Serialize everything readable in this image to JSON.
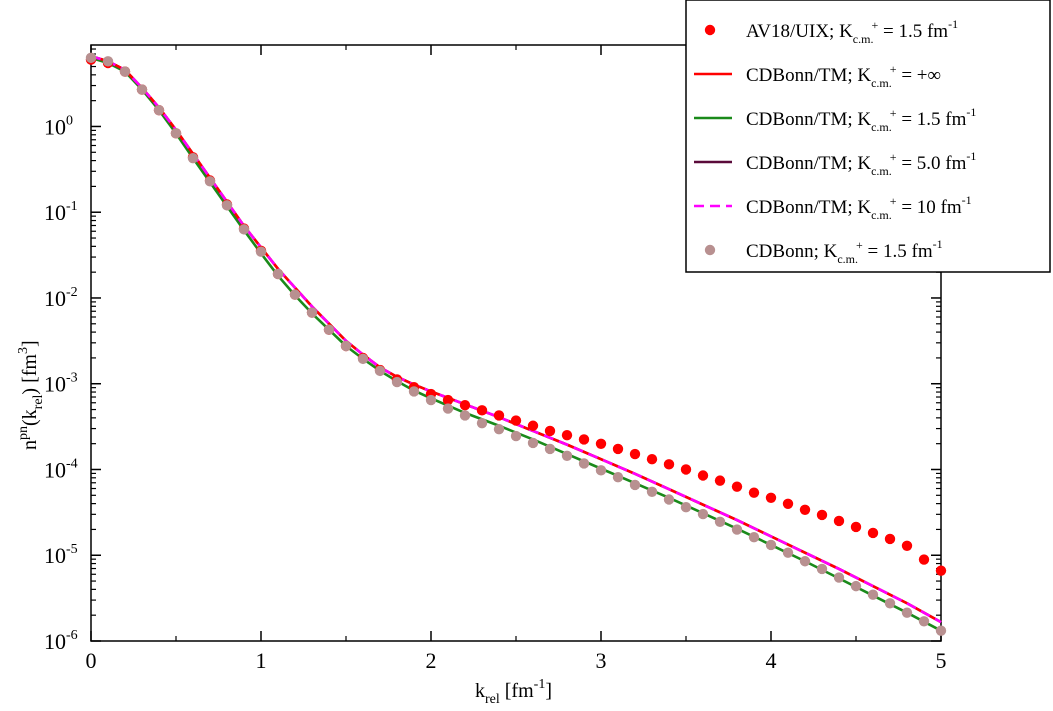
{
  "chart_data": {
    "type": "line",
    "xlabel": {
      "base": "k",
      "sub": "rel",
      "unit": "[fm",
      "unit_exp": "-1",
      "close": "]"
    },
    "ylabel": {
      "base": "n",
      "sup": "pn",
      "arg_open": "(k",
      "arg_sub": "rel",
      "arg_close": ")",
      "unit": "[fm",
      "unit_exp": "3",
      "close": "]"
    },
    "xlim": [
      0,
      5
    ],
    "ylim_log10": [
      -6,
      0.95
    ],
    "yscale": "log",
    "x_ticks": [
      {
        "value": 0,
        "label": "0"
      },
      {
        "value": 1,
        "label": "1"
      },
      {
        "value": 2,
        "label": "2"
      },
      {
        "value": 3,
        "label": "3"
      },
      {
        "value": 4,
        "label": "4"
      },
      {
        "value": 5,
        "label": "5"
      }
    ],
    "y_ticks": [
      {
        "log": 0,
        "base": "10",
        "exp": "0"
      },
      {
        "log": -1,
        "base": "10",
        "exp": "-1"
      },
      {
        "log": -2,
        "base": "10",
        "exp": "-2"
      },
      {
        "log": -3,
        "base": "10",
        "exp": "-3"
      },
      {
        "log": -4,
        "base": "10",
        "exp": "-4"
      },
      {
        "log": -5,
        "base": "10",
        "exp": "-5"
      },
      {
        "log": -6,
        "base": "10",
        "exp": "-6"
      }
    ],
    "legend_position": "top-right",
    "series": [
      {
        "name": "AV18/UIX; K_c.m.+ = 1.5 fm^-1",
        "legend": {
          "pre": "AV18/UIX; K",
          "sub": "c.m.",
          "sup": "+",
          "post": " = 1.5 fm",
          "post_exp": "-1"
        },
        "style": "markers",
        "color": "#ff0000",
        "x": [
          0,
          0.1,
          0.2,
          0.3,
          0.4,
          0.5,
          0.6,
          0.7,
          0.8,
          0.9,
          1.0,
          1.1,
          1.2,
          1.3,
          1.4,
          1.5,
          1.6,
          1.7,
          1.8,
          1.9,
          2.0,
          2.1,
          2.2,
          2.3,
          2.4,
          2.5,
          2.6,
          2.7,
          2.8,
          2.9,
          3.0,
          3.1,
          3.2,
          3.3,
          3.4,
          3.5,
          3.6,
          3.7,
          3.8,
          3.9,
          4.0,
          4.1,
          4.2,
          4.3,
          4.4,
          4.5,
          4.6,
          4.7,
          4.8,
          4.9,
          5.0
        ],
        "logy": [
          0.78,
          0.74,
          0.64,
          0.43,
          0.19,
          -0.08,
          -0.36,
          -0.63,
          -0.91,
          -1.19,
          -1.45,
          -1.72,
          -1.96,
          -2.17,
          -2.37,
          -2.56,
          -2.7,
          -2.84,
          -2.95,
          -3.04,
          -3.12,
          -3.19,
          -3.25,
          -3.31,
          -3.37,
          -3.43,
          -3.49,
          -3.55,
          -3.6,
          -3.65,
          -3.7,
          -3.76,
          -3.82,
          -3.88,
          -3.94,
          -4.0,
          -4.07,
          -4.13,
          -4.2,
          -4.27,
          -4.33,
          -4.4,
          -4.47,
          -4.53,
          -4.6,
          -4.67,
          -4.74,
          -4.81,
          -4.89,
          -5.05,
          -5.18
        ]
      },
      {
        "name": "CDBonn/TM; K_c.m.+ = +inf",
        "legend": {
          "pre": "CDBonn/TM; K",
          "sub": "c.m.",
          "sup": "+",
          "post": " = +∞",
          "post_exp": ""
        },
        "style": "solid",
        "color": "#ff0000",
        "x": [
          0,
          0.1,
          0.2,
          0.3,
          0.4,
          0.5,
          0.6,
          0.7,
          0.8,
          0.9,
          1.0,
          1.1,
          1.2,
          1.3,
          1.4,
          1.5,
          1.6,
          1.7,
          1.8,
          1.9,
          2.0,
          2.2,
          2.4,
          2.6,
          2.8,
          3.0,
          3.2,
          3.4,
          3.6,
          3.8,
          4.0,
          4.2,
          4.4,
          4.6,
          4.8,
          5.0
        ],
        "logy": [
          0.82,
          0.76,
          0.66,
          0.45,
          0.22,
          -0.04,
          -0.32,
          -0.6,
          -0.88,
          -1.16,
          -1.41,
          -1.66,
          -1.88,
          -2.1,
          -2.3,
          -2.5,
          -2.66,
          -2.81,
          -2.92,
          -3.01,
          -3.09,
          -3.24,
          -3.39,
          -3.55,
          -3.71,
          -3.88,
          -4.05,
          -4.23,
          -4.41,
          -4.59,
          -4.78,
          -4.97,
          -5.16,
          -5.36,
          -5.56,
          -5.78
        ]
      },
      {
        "name": "CDBonn/TM; K_c.m.+ = 1.5 fm^-1",
        "legend": {
          "pre": "CDBonn/TM; K",
          "sub": "c.m.",
          "sup": "+",
          "post": " = 1.5 fm",
          "post_exp": "-1"
        },
        "style": "solid",
        "color": "#1a8a1a",
        "x": [
          0,
          0.1,
          0.2,
          0.3,
          0.4,
          0.5,
          0.6,
          0.7,
          0.8,
          0.9,
          1.0,
          1.1,
          1.2,
          1.3,
          1.4,
          1.5,
          1.6,
          1.7,
          1.8,
          1.9,
          2.0,
          2.2,
          2.4,
          2.6,
          2.8,
          3.0,
          3.2,
          3.4,
          3.6,
          3.8,
          4.0,
          4.2,
          4.4,
          4.6,
          4.8,
          5.0
        ],
        "logy": [
          0.8,
          0.74,
          0.64,
          0.43,
          0.19,
          -0.08,
          -0.37,
          -0.65,
          -0.93,
          -1.21,
          -1.48,
          -1.74,
          -1.97,
          -2.18,
          -2.37,
          -2.56,
          -2.71,
          -2.85,
          -2.97,
          -3.08,
          -3.17,
          -3.34,
          -3.49,
          -3.65,
          -3.82,
          -3.99,
          -4.16,
          -4.33,
          -4.51,
          -4.69,
          -4.88,
          -5.07,
          -5.27,
          -5.47,
          -5.67,
          -5.88
        ]
      },
      {
        "name": "CDBonn/TM; K_c.m.+ = 5.0 fm^-1",
        "legend": {
          "pre": "CDBonn/TM; K",
          "sub": "c.m.",
          "sup": "+",
          "post": " = 5.0 fm",
          "post_exp": "-1"
        },
        "style": "solid",
        "color": "#5a0a3a",
        "x": [
          0,
          0.1,
          0.2,
          0.3,
          0.4,
          0.5,
          0.6,
          0.7,
          0.8,
          0.9,
          1.0,
          1.1,
          1.2,
          1.3,
          1.4,
          1.5,
          1.6,
          1.7,
          1.8,
          1.9,
          2.0,
          2.2,
          2.4,
          2.6,
          2.8,
          3.0,
          3.2,
          3.4,
          3.6,
          3.8,
          4.0,
          4.2,
          4.4,
          4.6,
          4.8,
          5.0
        ],
        "logy": [
          0.82,
          0.76,
          0.66,
          0.45,
          0.22,
          -0.04,
          -0.32,
          -0.6,
          -0.88,
          -1.16,
          -1.41,
          -1.66,
          -1.88,
          -2.1,
          -2.3,
          -2.5,
          -2.66,
          -2.81,
          -2.92,
          -3.01,
          -3.09,
          -3.24,
          -3.39,
          -3.55,
          -3.71,
          -3.88,
          -4.05,
          -4.23,
          -4.41,
          -4.59,
          -4.78,
          -4.97,
          -5.16,
          -5.36,
          -5.56,
          -5.78
        ]
      },
      {
        "name": "CDBonn/TM; K_c.m.+ = 10 fm^-1",
        "legend": {
          "pre": "CDBonn/TM; K",
          "sub": "c.m.",
          "sup": "+",
          "post": " = 10 fm",
          "post_exp": "-1"
        },
        "style": "dashed",
        "color": "#ff00ff",
        "x": [
          0,
          0.1,
          0.2,
          0.3,
          0.4,
          0.5,
          0.6,
          0.7,
          0.8,
          0.9,
          1.0,
          1.1,
          1.2,
          1.3,
          1.4,
          1.5,
          1.6,
          1.7,
          1.8,
          1.9,
          2.0,
          2.2,
          2.4,
          2.6,
          2.8,
          3.0,
          3.2,
          3.4,
          3.6,
          3.8,
          4.0,
          4.2,
          4.4,
          4.6,
          4.8,
          5.0
        ],
        "logy": [
          0.82,
          0.76,
          0.66,
          0.45,
          0.22,
          -0.04,
          -0.32,
          -0.6,
          -0.88,
          -1.16,
          -1.41,
          -1.66,
          -1.88,
          -2.1,
          -2.3,
          -2.5,
          -2.66,
          -2.81,
          -2.92,
          -3.01,
          -3.09,
          -3.24,
          -3.39,
          -3.55,
          -3.71,
          -3.88,
          -4.05,
          -4.23,
          -4.41,
          -4.59,
          -4.78,
          -4.97,
          -5.16,
          -5.36,
          -5.56,
          -5.78
        ]
      },
      {
        "name": "CDBonn; K_c.m.+ = 1.5 fm^-1",
        "legend": {
          "pre": "CDBonn; K",
          "sub": "c.m.",
          "sup": "+",
          "post": " = 1.5 fm",
          "post_exp": "-1"
        },
        "style": "markers",
        "color": "#b89090",
        "x": [
          0,
          0.1,
          0.2,
          0.3,
          0.4,
          0.5,
          0.6,
          0.7,
          0.8,
          0.9,
          1.0,
          1.1,
          1.2,
          1.3,
          1.4,
          1.5,
          1.6,
          1.7,
          1.8,
          1.9,
          2.0,
          2.1,
          2.2,
          2.3,
          2.4,
          2.5,
          2.6,
          2.7,
          2.8,
          2.9,
          3.0,
          3.1,
          3.2,
          3.3,
          3.4,
          3.5,
          3.6,
          3.7,
          3.8,
          3.9,
          4.0,
          4.1,
          4.2,
          4.3,
          4.4,
          4.5,
          4.6,
          4.7,
          4.8,
          4.9,
          5.0
        ],
        "logy": [
          0.8,
          0.76,
          0.64,
          0.43,
          0.19,
          -0.08,
          -0.37,
          -0.64,
          -0.92,
          -1.2,
          -1.46,
          -1.72,
          -1.96,
          -2.17,
          -2.37,
          -2.56,
          -2.71,
          -2.85,
          -2.98,
          -3.09,
          -3.19,
          -3.29,
          -3.37,
          -3.46,
          -3.53,
          -3.61,
          -3.69,
          -3.76,
          -3.84,
          -3.93,
          -4.01,
          -4.09,
          -4.18,
          -4.26,
          -4.35,
          -4.44,
          -4.52,
          -4.61,
          -4.7,
          -4.79,
          -4.88,
          -4.97,
          -5.07,
          -5.16,
          -5.26,
          -5.36,
          -5.46,
          -5.56,
          -5.67,
          -5.77,
          -5.88
        ]
      }
    ]
  }
}
